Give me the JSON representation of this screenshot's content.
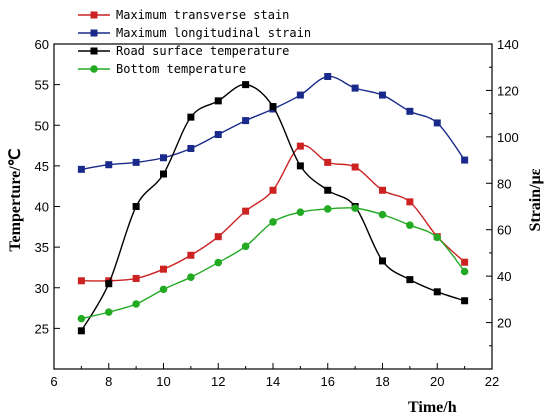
{
  "chart_data": {
    "type": "line",
    "xlabel": "Time/h",
    "ylabel_left": "Temperture/℃",
    "ylabel_right": "Strain/με",
    "xlim": [
      6,
      22
    ],
    "ylim_left": [
      20,
      60
    ],
    "ylim_right": [
      0,
      140
    ],
    "x_ticks": [
      6,
      8,
      10,
      12,
      14,
      16,
      18,
      20,
      22
    ],
    "y_left_ticks": [
      25,
      30,
      35,
      40,
      45,
      50,
      55,
      60
    ],
    "y_right_ticks": [
      20,
      40,
      60,
      80,
      100,
      120,
      140
    ],
    "legend_position": "top-left",
    "grid": false,
    "series": [
      {
        "name": "Maximum transverse stain",
        "axis": "right",
        "color": "#cc2222",
        "marker": "square",
        "x": [
          7,
          8,
          9,
          10,
          11,
          12,
          13,
          14,
          15,
          16,
          17,
          18,
          19,
          20,
          21
        ],
        "y": [
          38,
          38,
          39,
          43,
          49,
          57,
          68,
          77,
          96,
          89,
          87,
          77,
          72,
          57,
          46
        ]
      },
      {
        "name": "Maximum longitudinal strain",
        "axis": "right",
        "color": "#1a2a8a",
        "marker": "square",
        "x": [
          7,
          8,
          9,
          10,
          11,
          12,
          13,
          14,
          15,
          16,
          17,
          18,
          19,
          20,
          21
        ],
        "y": [
          86,
          88,
          89,
          91,
          95,
          101,
          107,
          112,
          118,
          126,
          121,
          118,
          111,
          106,
          90
        ]
      },
      {
        "name": "Road surface temperature",
        "axis": "left",
        "color": "#000000",
        "marker": "square",
        "x": [
          7,
          8,
          9,
          10,
          11,
          12,
          13,
          14,
          15,
          16,
          17,
          18,
          19,
          20,
          21
        ],
        "y": [
          24.7,
          30.5,
          40,
          44,
          51,
          53,
          55,
          52.3,
          45,
          42,
          40,
          33.3,
          31,
          29.5,
          28.4
        ]
      },
      {
        "name": "Bottom temperature",
        "axis": "left",
        "color": "#22aa22",
        "marker": "diamond",
        "x": [
          7,
          8,
          9,
          10,
          11,
          12,
          13,
          14,
          15,
          16,
          17,
          18,
          19,
          20,
          21
        ],
        "y": [
          26.2,
          27,
          28,
          29.8,
          31.3,
          33.1,
          35.1,
          38.1,
          39.3,
          39.7,
          39.8,
          39,
          37.7,
          36.2,
          32
        ]
      }
    ]
  }
}
